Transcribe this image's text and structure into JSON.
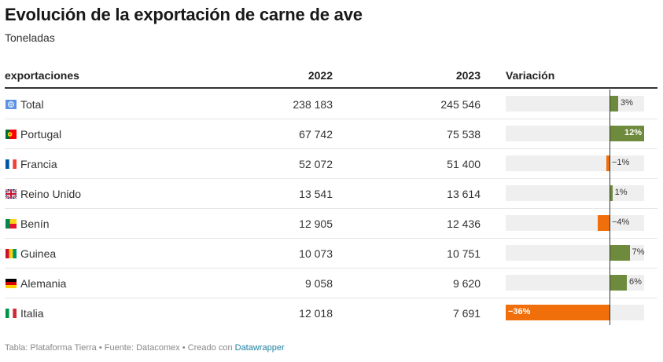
{
  "title": "Evolución de la exportación de carne de ave",
  "subtitle": "Toneladas",
  "columns": {
    "name": "exportaciones",
    "y2022": "2022",
    "y2023": "2023",
    "variation": "Variación"
  },
  "colors": {
    "positive": "#6e8b3d",
    "negative": "#f06f0a",
    "track": "#efefef",
    "link": "#1d81a2"
  },
  "chart_data": {
    "type": "table",
    "title": "Evolución de la exportación de carne de ave",
    "subtitle": "Toneladas",
    "bar_range": [
      -36,
      12
    ],
    "rows": [
      {
        "name": "Total",
        "flag": "world-flag-icon",
        "y2022": "238 183",
        "y2023": "245 546",
        "variation": 3,
        "variation_label": "3%"
      },
      {
        "name": "Portugal",
        "flag": "portugal-flag-icon",
        "y2022": "67 742",
        "y2023": "75 538",
        "variation": 12,
        "variation_label": "12%"
      },
      {
        "name": "Francia",
        "flag": "france-flag-icon",
        "y2022": "52 072",
        "y2023": "51 400",
        "variation": -1,
        "variation_label": "−1%"
      },
      {
        "name": "Reino Unido",
        "flag": "uk-flag-icon",
        "y2022": "13 541",
        "y2023": "13 614",
        "variation": 1,
        "variation_label": "1%"
      },
      {
        "name": "Benín",
        "flag": "benin-flag-icon",
        "y2022": "12 905",
        "y2023": "12 436",
        "variation": -4,
        "variation_label": "−4%"
      },
      {
        "name": "Guinea",
        "flag": "guinea-flag-icon",
        "y2022": "10 073",
        "y2023": "10 751",
        "variation": 7,
        "variation_label": "7%"
      },
      {
        "name": "Alemania",
        "flag": "germany-flag-icon",
        "y2022": "9 058",
        "y2023": "9 620",
        "variation": 6,
        "variation_label": "6%"
      },
      {
        "name": "Italia",
        "flag": "italy-flag-icon",
        "y2022": "12 018",
        "y2023": "7 691",
        "variation": -36,
        "variation_label": "−36%"
      }
    ]
  },
  "footer": {
    "prefix": "Tabla: Plataforma Tierra • Fuente: Datacomex • Creado con ",
    "link": "Datawrapper"
  }
}
